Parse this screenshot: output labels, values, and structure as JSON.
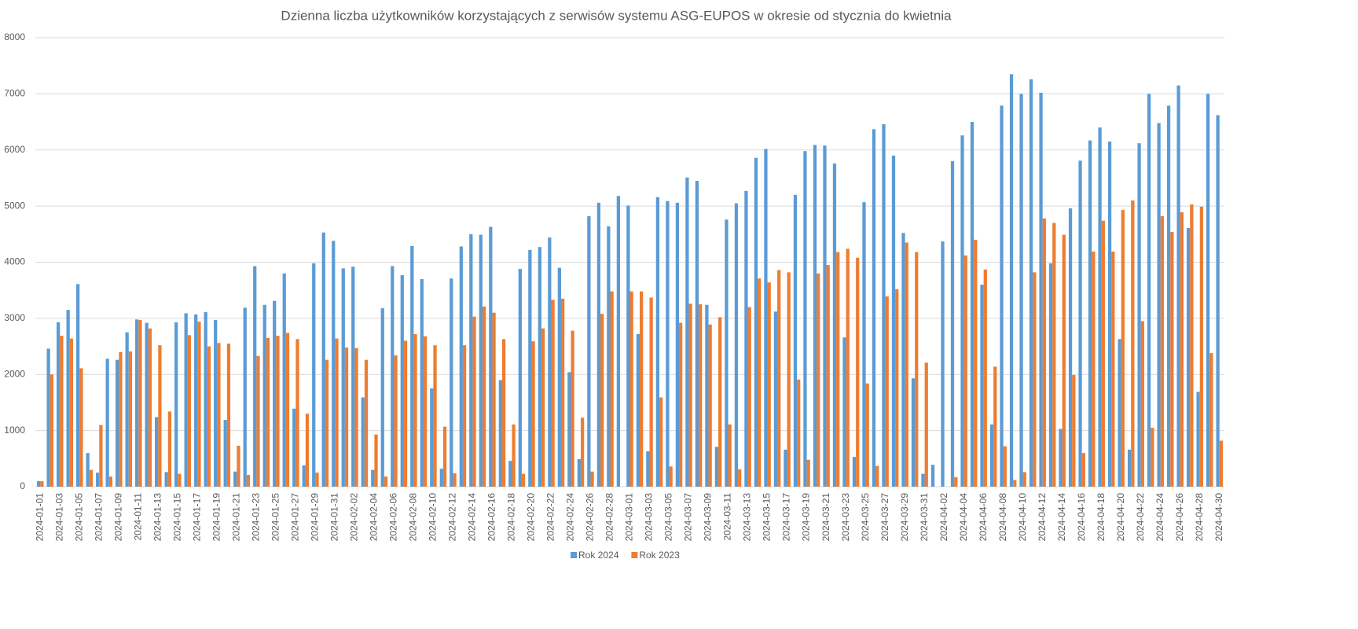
{
  "chart_data": {
    "type": "bar",
    "title": "Dzienna liczba użytkowników korzystających z serwisów systemu ASG-EUPOS w okresie od stycznia do kwietnia",
    "categories": [
      "2024-01-01",
      null,
      "2024-01-03",
      null,
      "2024-01-05",
      null,
      "2024-01-07",
      null,
      "2024-01-09",
      null,
      "2024-01-11",
      null,
      "2024-01-13",
      null,
      "2024-01-15",
      null,
      "2024-01-17",
      null,
      "2024-01-19",
      null,
      "2024-01-21",
      null,
      "2024-01-23",
      null,
      "2024-01-25",
      null,
      "2024-01-27",
      null,
      "2024-01-29",
      null,
      "2024-01-31",
      null,
      "2024-02-02",
      null,
      "2024-02-04",
      null,
      "2024-02-06",
      null,
      "2024-02-08",
      null,
      "2024-02-10",
      null,
      "2024-02-12",
      null,
      "2024-02-14",
      null,
      "2024-02-16",
      null,
      "2024-02-18",
      null,
      "2024-02-20",
      null,
      "2024-02-22",
      null,
      "2024-02-24",
      null,
      "2024-02-26",
      null,
      "2024-02-28",
      null,
      "2024-03-01",
      null,
      "2024-03-03",
      null,
      "2024-03-05",
      null,
      "2024-03-07",
      null,
      "2024-03-09",
      null,
      "2024-03-11",
      null,
      "2024-03-13",
      null,
      "2024-03-15",
      null,
      "2024-03-17",
      null,
      "2024-03-19",
      null,
      "2024-03-21",
      null,
      "2024-03-23",
      null,
      "2024-03-25",
      null,
      "2024-03-27",
      null,
      "2024-03-29",
      null,
      "2024-03-31",
      null,
      "2024-04-02",
      null,
      "2024-04-04",
      null,
      "2024-04-06",
      null,
      "2024-04-08",
      null,
      "2024-04-10",
      null,
      "2024-04-12",
      null,
      "2024-04-14",
      null,
      "2024-04-16",
      null,
      "2024-04-18",
      null,
      "2024-04-20",
      null,
      "2024-04-22",
      null,
      "2024-04-24",
      null,
      "2024-04-26",
      null,
      "2024-04-28",
      null,
      "2024-04-30"
    ],
    "series": [
      {
        "name": "Rok 2024",
        "color": "#5b9bd5",
        "values": [
          100,
          2460,
          2930,
          3150,
          3610,
          600,
          250,
          2280,
          2260,
          2750,
          2980,
          2920,
          1240,
          260,
          2930,
          3090,
          3070,
          3110,
          2970,
          1190,
          270,
          3190,
          3930,
          3240,
          3310,
          3800,
          1390,
          380,
          3980,
          4530,
          4380,
          3890,
          3920,
          1590,
          300,
          3180,
          3930,
          3770,
          4290,
          3700,
          1750,
          320,
          3710,
          4280,
          4500,
          4490,
          4630,
          1900,
          460,
          3880,
          4220,
          4270,
          4440,
          3900,
          2040,
          490,
          4820,
          5060,
          4640,
          5180,
          5010,
          2720,
          630,
          5160,
          5090,
          5060,
          5510,
          5450,
          3240,
          710,
          4760,
          5050,
          5270,
          5860,
          6020,
          3120,
          660,
          5200,
          5980,
          6090,
          6080,
          5760,
          2660,
          530,
          5070,
          6370,
          6460,
          5900,
          4520,
          1930,
          230,
          390,
          4370,
          5800,
          6260,
          6500,
          3600,
          1110,
          6790,
          7350,
          7000,
          7260,
          7020,
          3980,
          1030,
          4960,
          5810,
          6170,
          6400,
          6150,
          2630,
          660,
          6120,
          7000,
          6480,
          6790,
          7150,
          4610,
          1690,
          7000,
          6620
        ]
      },
      {
        "name": "Rok 2023",
        "color": "#ed7d31",
        "values": [
          100,
          2000,
          2690,
          2640,
          2110,
          300,
          1100,
          180,
          2400,
          2410,
          2970,
          2820,
          2520,
          1340,
          230,
          2700,
          2940,
          2500,
          2560,
          2550,
          730,
          210,
          2330,
          2650,
          2690,
          2740,
          2630,
          1300,
          250,
          2260,
          2640,
          2480,
          2470,
          2260,
          930,
          180,
          2340,
          2600,
          2720,
          2680,
          2520,
          1070,
          240,
          2520,
          3030,
          3210,
          3100,
          2630,
          1110,
          230,
          2590,
          2820,
          3330,
          3350,
          2780,
          1230,
          270,
          3080,
          3480,
          null,
          3480,
          3480,
          3370,
          1590,
          360,
          2920,
          3260,
          3250,
          2890,
          3020,
          1110,
          310,
          3200,
          3710,
          3640,
          3860,
          3820,
          1910,
          480,
          3800,
          3950,
          4180,
          4240,
          4080,
          1840,
          370,
          3390,
          3520,
          4350,
          4180,
          2210,
          null,
          null,
          170,
          4120,
          4400,
          3870,
          2140,
          720,
          120,
          260,
          3820,
          4780,
          4700,
          4490,
          1990,
          600,
          4190,
          4740,
          4190,
          4930,
          5100,
          2950,
          1050,
          4820,
          4540,
          4890,
          5030,
          4990,
          2380,
          820
        ]
      }
    ],
    "ylim": [
      0,
      8000
    ],
    "yticks": [
      0,
      1000,
      2000,
      3000,
      4000,
      5000,
      6000,
      7000,
      8000
    ],
    "grid": true,
    "legend": "bottom"
  }
}
